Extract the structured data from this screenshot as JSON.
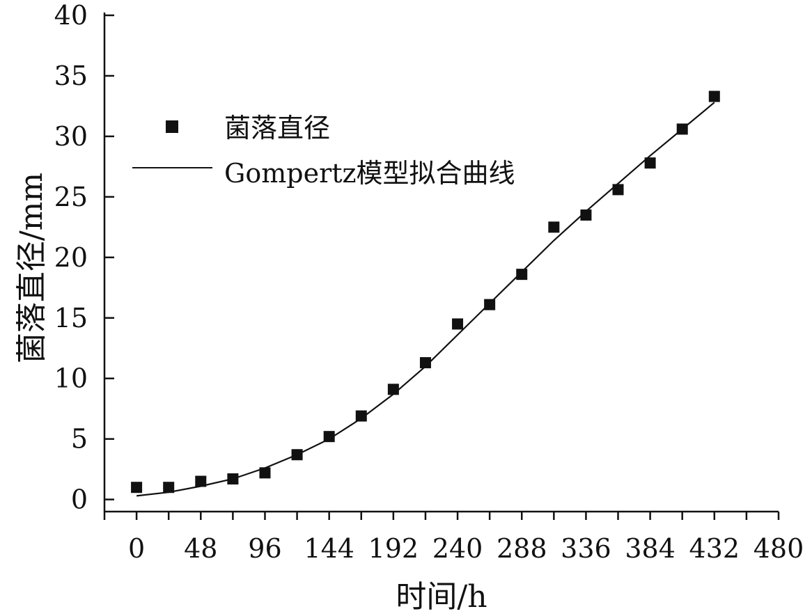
{
  "chart_data": {
    "type": "scatter",
    "title": "",
    "xlabel": "时间/h",
    "ylabel": "菌落直径/mm",
    "xlim": [
      -24,
      480
    ],
    "ylim": [
      -1,
      40
    ],
    "x_ticks": [
      0,
      48,
      96,
      144,
      192,
      240,
      288,
      336,
      384,
      432,
      480
    ],
    "x_tick_labels": [
      "0",
      "48",
      "96",
      "144",
      "192",
      "240",
      "288",
      "336",
      "384",
      "432",
      "480"
    ],
    "y_ticks": [
      0,
      5,
      10,
      15,
      20,
      25,
      30,
      35,
      40
    ],
    "y_tick_labels": [
      "0",
      "5",
      "10",
      "15",
      "20",
      "25",
      "30",
      "35",
      "40"
    ],
    "grid": false,
    "legend_position": "top-left",
    "series": [
      {
        "name": "菌落直径",
        "kind": "marker-square",
        "color": "#111111",
        "x": [
          0,
          24,
          48,
          72,
          96,
          120,
          144,
          168,
          192,
          216,
          240,
          264,
          288,
          312,
          336,
          360,
          384,
          408,
          432
        ],
        "y": [
          1.0,
          1.0,
          1.5,
          1.7,
          2.2,
          3.7,
          5.2,
          6.9,
          9.1,
          11.3,
          14.5,
          16.1,
          18.6,
          22.5,
          23.5,
          25.6,
          27.8,
          30.6,
          33.3
        ]
      },
      {
        "name": "Gompertz模型拟合曲线",
        "kind": "line",
        "color": "#111111",
        "x": [
          0,
          24,
          48,
          72,
          96,
          120,
          144,
          168,
          192,
          216,
          240,
          264,
          288,
          312,
          336,
          360,
          384,
          408,
          432
        ],
        "y": [
          0.3,
          0.6,
          1.1,
          1.7,
          2.6,
          3.7,
          5.0,
          6.7,
          8.7,
          11.0,
          13.6,
          16.2,
          18.8,
          21.4,
          23.8,
          26.1,
          28.4,
          30.6,
          32.8
        ]
      }
    ]
  }
}
